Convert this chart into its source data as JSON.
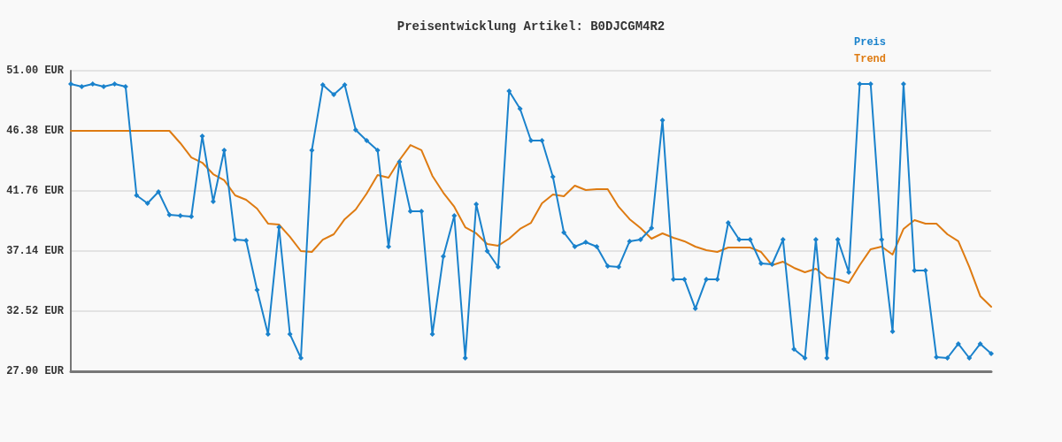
{
  "chart_data": {
    "type": "line",
    "title": "Preisentwicklung Artikel: B0DJCGM4R2",
    "categories": [
      null,
      null,
      null,
      null,
      null,
      null,
      null,
      null,
      null,
      null,
      null,
      null,
      null,
      null,
      null,
      null,
      null,
      null,
      null,
      null,
      null,
      null,
      null,
      null,
      null,
      null,
      null,
      null,
      null,
      null,
      null,
      null,
      null,
      null,
      null,
      null,
      null,
      null,
      null,
      null,
      null,
      null,
      null,
      null,
      null,
      null,
      null,
      null,
      null,
      null,
      null,
      null,
      null,
      null,
      null,
      null,
      null,
      null,
      null,
      null,
      null,
      null,
      null,
      null,
      null,
      null,
      null,
      null,
      null,
      null,
      null,
      null,
      null,
      null,
      null,
      null,
      null,
      null,
      null,
      null,
      null,
      null,
      null,
      null,
      null
    ],
    "series": [
      {
        "name": "Preis",
        "color": "#1a82cc",
        "marker": "diamond",
        "values": [
          49.98,
          49.78,
          49.98,
          49.78,
          49.98,
          49.78,
          41.42,
          40.81,
          41.69,
          39.93,
          39.86,
          39.79,
          45.97,
          40.94,
          44.89,
          38.02,
          37.96,
          34.15,
          30.75,
          38.97,
          30.75,
          28.92,
          44.89,
          49.91,
          49.17,
          49.91,
          46.45,
          45.63,
          44.89,
          37.48,
          44.0,
          40.2,
          40.2,
          30.75,
          36.73,
          39.86,
          28.92,
          40.74,
          37.14,
          35.92,
          49.44,
          48.08,
          45.63,
          45.63,
          42.85,
          38.57,
          37.48,
          37.82,
          37.48,
          35.99,
          35.92,
          37.89,
          38.02,
          38.91,
          47.2,
          34.97,
          34.97,
          32.72,
          34.97,
          34.97,
          39.31,
          38.02,
          38.02,
          36.19,
          36.12,
          38.02,
          29.6,
          28.92,
          38.02,
          28.92,
          38.02,
          35.51,
          49.98,
          49.98,
          38.02,
          30.96,
          49.98,
          35.65,
          35.65,
          28.99,
          28.92,
          30.01,
          28.92,
          30.01,
          29.26
        ]
      },
      {
        "name": "Trend",
        "color": "#de7b12",
        "marker": "none",
        "values": [
          46.38,
          46.38,
          46.38,
          46.38,
          46.38,
          46.38,
          46.38,
          46.38,
          46.38,
          46.38,
          45.43,
          44.34,
          43.93,
          43.05,
          42.58,
          41.42,
          41.08,
          40.4,
          39.25,
          39.18,
          38.23,
          37.14,
          37.07,
          38.02,
          38.43,
          39.59,
          40.33,
          41.56,
          42.98,
          42.78,
          44.14,
          45.29,
          44.89,
          42.92,
          41.62,
          40.54,
          38.97,
          38.5,
          37.68,
          37.55,
          38.09,
          38.84,
          39.31,
          40.81,
          41.49,
          41.35,
          42.17,
          41.83,
          41.9,
          41.9,
          40.54,
          39.59,
          38.91,
          38.09,
          38.5,
          38.16,
          37.89,
          37.48,
          37.21,
          37.07,
          37.41,
          37.41,
          37.41,
          37.07,
          36.05,
          36.32,
          35.85,
          35.51,
          35.78,
          35.1,
          34.97,
          34.69,
          36.05,
          37.28,
          37.48,
          36.87,
          38.84,
          39.52,
          39.25,
          39.25,
          38.43,
          37.89,
          35.92,
          33.68,
          32.86
        ]
      }
    ],
    "ylim": [
      27.9,
      51
    ],
    "yticks": [
      {
        "value": 27.9,
        "label": "27.90 EUR"
      },
      {
        "value": 32.52,
        "label": "32.52 EUR"
      },
      {
        "value": 37.14,
        "label": "37.14 EUR"
      },
      {
        "value": 41.76,
        "label": "41.76 EUR"
      },
      {
        "value": 46.38,
        "label": "46.38 EUR"
      },
      {
        "value": 51,
        "label": "51.00 EUR"
      }
    ],
    "grid": "y",
    "legend": "top right",
    "tick_labels": "y",
    "line_style": "solid"
  }
}
